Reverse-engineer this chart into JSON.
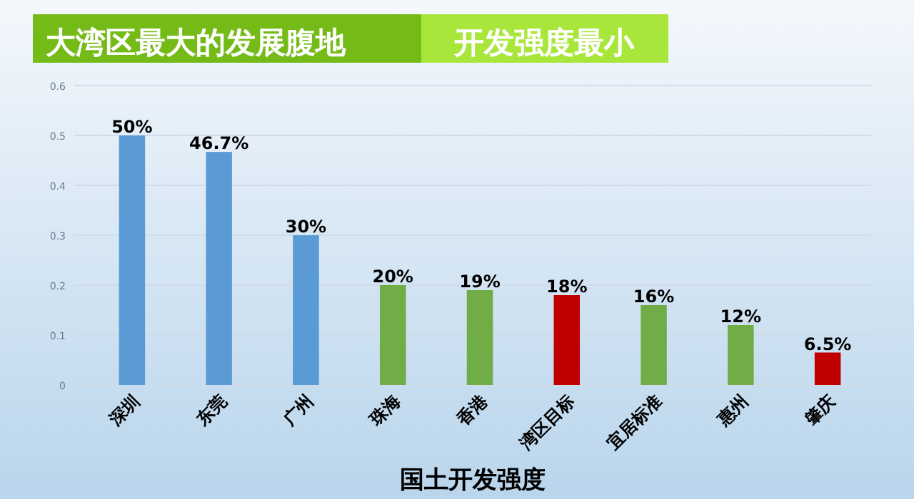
{
  "chart_data": {
    "type": "bar",
    "title": "大湾区最大的发展腹地",
    "subtitle": "开发强度最小",
    "xlabel": "国土开发强度",
    "categories": [
      "深圳",
      "东莞",
      "广州",
      "珠海",
      "香港",
      "湾区目标",
      "宜居标准",
      "惠州",
      "肇庆"
    ],
    "values": [
      0.5,
      0.467,
      0.3,
      0.2,
      0.19,
      0.18,
      0.16,
      0.12,
      0.065
    ],
    "colors": [
      "#5b9bd5",
      "#5b9bd5",
      "#5b9bd5",
      "#70ad47",
      "#70ad47",
      "#c00000",
      "#70ad47",
      "#70ad47",
      "#c00000"
    ],
    "value_labels": [
      "50%",
      "46.7%",
      "30%",
      "20%",
      "19%",
      "18%",
      "16%",
      "12%",
      "6.5%"
    ],
    "ylim": [
      0,
      0.6
    ],
    "yticks": [
      0,
      0.1,
      0.2,
      0.3,
      0.4,
      0.5,
      0.6
    ],
    "grid": "y"
  }
}
